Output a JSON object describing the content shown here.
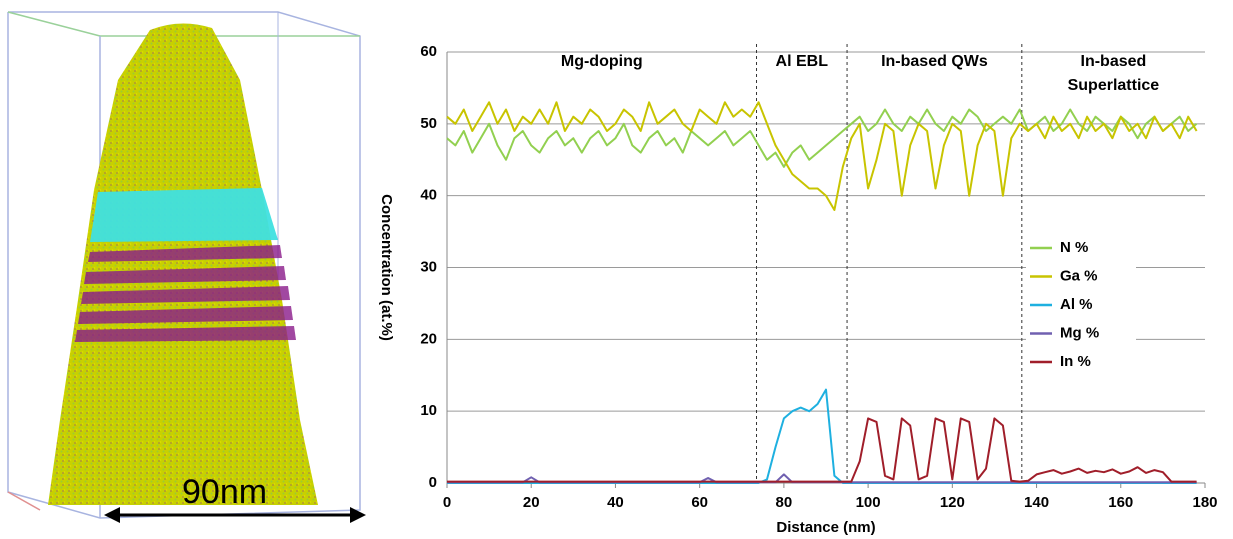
{
  "specimen": {
    "scale_label": "90nm"
  },
  "chart_data": {
    "type": "line",
    "x_label": "Distance (nm)",
    "y_label": "Concentration (at.%)",
    "xlim": [
      0,
      180
    ],
    "xticks": [
      0,
      20,
      40,
      60,
      80,
      100,
      120,
      140,
      160,
      180
    ],
    "ylim": [
      0,
      60
    ],
    "yticks": [
      0,
      10,
      20,
      30,
      40,
      50,
      60
    ],
    "grid": true,
    "regions": [
      [
        "Mg-doping"
      ],
      [
        "Al EBL"
      ],
      [
        "In-based QWs"
      ],
      [
        "In-based",
        "Superlattice"
      ]
    ],
    "region_bounds": [
      73.5,
      95,
      136.5
    ],
    "x": [
      0,
      2,
      4,
      6,
      8,
      10,
      12,
      14,
      16,
      18,
      20,
      22,
      24,
      26,
      28,
      30,
      32,
      34,
      36,
      38,
      40,
      42,
      44,
      46,
      48,
      50,
      52,
      54,
      56,
      58,
      60,
      62,
      64,
      66,
      68,
      70,
      72,
      74,
      76,
      78,
      80,
      82,
      84,
      86,
      88,
      90,
      92,
      94,
      96,
      98,
      100,
      102,
      104,
      106,
      108,
      110,
      112,
      114,
      116,
      118,
      120,
      122,
      124,
      126,
      128,
      130,
      132,
      134,
      136,
      138,
      140,
      142,
      144,
      146,
      148,
      150,
      152,
      154,
      156,
      158,
      160,
      162,
      164,
      166,
      168,
      170,
      172,
      174,
      176,
      178
    ],
    "series": [
      {
        "name": "N %",
        "color": "#92d050",
        "values": [
          48,
          47,
          49,
          46,
          48,
          50,
          47,
          45,
          48,
          49,
          47,
          46,
          48,
          49,
          47,
          48,
          46,
          48,
          49,
          47,
          48,
          50,
          47,
          46,
          48,
          49,
          47,
          48,
          46,
          49,
          48,
          47,
          48,
          49,
          47,
          48,
          49,
          47,
          45,
          46,
          44,
          46,
          47,
          45,
          46,
          47,
          48,
          49,
          50,
          51,
          49,
          50,
          52,
          50,
          49,
          51,
          50,
          52,
          50,
          49,
          51,
          50,
          52,
          51,
          49,
          50,
          51,
          50,
          52,
          49,
          50,
          51,
          49,
          50,
          52,
          50,
          49,
          51,
          50,
          49,
          51,
          50,
          48,
          50,
          51,
          49,
          50,
          51,
          49,
          50
        ]
      },
      {
        "name": "Ga %",
        "color": "#c8c400",
        "values": [
          51,
          50,
          52,
          49,
          51,
          53,
          50,
          52,
          49,
          51,
          50,
          52,
          50,
          53,
          49,
          51,
          50,
          52,
          51,
          49,
          50,
          52,
          51,
          49,
          53,
          50,
          51,
          52,
          50,
          49,
          52,
          51,
          50,
          53,
          51,
          52,
          51,
          53,
          50,
          47,
          45,
          43,
          42,
          41,
          41,
          40,
          38,
          44,
          48,
          50,
          41,
          45,
          50,
          49,
          40,
          47,
          50,
          49,
          41,
          47,
          50,
          49,
          40,
          47,
          50,
          49,
          40,
          48,
          50,
          49,
          50,
          48,
          51,
          49,
          50,
          48,
          51,
          49,
          50,
          48,
          51,
          49,
          50,
          48,
          51,
          49,
          50,
          48,
          51,
          49
        ]
      },
      {
        "name": "Al %",
        "color": "#1eb0e0",
        "values": [
          0,
          0,
          0,
          0,
          0,
          0,
          0,
          0,
          0,
          0,
          0,
          0,
          0,
          0,
          0,
          0,
          0,
          0,
          0,
          0,
          0,
          0,
          0,
          0,
          0,
          0,
          0,
          0,
          0,
          0,
          0,
          0,
          0,
          0,
          0,
          0,
          0,
          0,
          0.5,
          5,
          9,
          10,
          10.5,
          10,
          11,
          13,
          1,
          0,
          0,
          0,
          0,
          0,
          0,
          0,
          0,
          0,
          0,
          0,
          0,
          0,
          0,
          0,
          0,
          0,
          0,
          0,
          0,
          0,
          0,
          0,
          0,
          0,
          0,
          0,
          0,
          0,
          0,
          0,
          0,
          0,
          0,
          0,
          0,
          0,
          0,
          0,
          0,
          0,
          0,
          0
        ]
      },
      {
        "name": "Mg %",
        "color": "#7060b0",
        "values": [
          0.1,
          0.1,
          0.1,
          0.1,
          0.1,
          0.1,
          0.1,
          0.1,
          0.1,
          0.1,
          0.8,
          0.1,
          0.1,
          0.1,
          0.1,
          0.1,
          0.1,
          0.1,
          0.1,
          0.1,
          0.1,
          0.1,
          0.1,
          0.1,
          0.1,
          0.1,
          0.1,
          0.1,
          0.1,
          0.1,
          0.1,
          0.7,
          0.1,
          0.1,
          0.1,
          0.1,
          0.1,
          0.1,
          0.1,
          0.1,
          1.2,
          0.1,
          0.1,
          0.1,
          0.1,
          0.1,
          0.1,
          0.1,
          0.1,
          0.1,
          0.1,
          0.1,
          0.1,
          0.1,
          0.1,
          0.1,
          0.1,
          0.1,
          0.1,
          0.1,
          0.1,
          0.1,
          0.1,
          0.1,
          0.1,
          0.1,
          0.1,
          0.1,
          0.1,
          0.1,
          0.1,
          0.1,
          0.1,
          0.1,
          0.1,
          0.1,
          0.1,
          0.1,
          0.1,
          0.1,
          0.1,
          0.1,
          0.1,
          0.1,
          0.1,
          0.1,
          0.1,
          0.1,
          0.1,
          0.1
        ]
      },
      {
        "name": "In %",
        "color": "#a01e2a",
        "values": [
          0.2,
          0.2,
          0.2,
          0.2,
          0.2,
          0.2,
          0.2,
          0.2,
          0.2,
          0.2,
          0.2,
          0.2,
          0.2,
          0.2,
          0.2,
          0.2,
          0.2,
          0.2,
          0.2,
          0.2,
          0.2,
          0.2,
          0.2,
          0.2,
          0.2,
          0.2,
          0.2,
          0.2,
          0.2,
          0.2,
          0.2,
          0.2,
          0.2,
          0.2,
          0.2,
          0.2,
          0.2,
          0.2,
          0.2,
          0.2,
          0.2,
          0.2,
          0.2,
          0.2,
          0.2,
          0.2,
          0.2,
          0.2,
          0.2,
          3,
          9,
          8.5,
          1,
          0.5,
          9,
          8,
          0.5,
          1,
          9,
          8.5,
          0.5,
          9,
          8.5,
          0.5,
          2,
          9,
          8,
          0.3,
          0.2,
          0.3,
          1.2,
          1.5,
          1.8,
          1.3,
          1.6,
          2,
          1.4,
          1.7,
          1.5,
          1.9,
          1.3,
          1.6,
          2.2,
          1.4,
          1.8,
          1.5,
          0.2,
          0.2,
          0.2,
          0.2
        ]
      }
    ],
    "legend_position": "right"
  }
}
